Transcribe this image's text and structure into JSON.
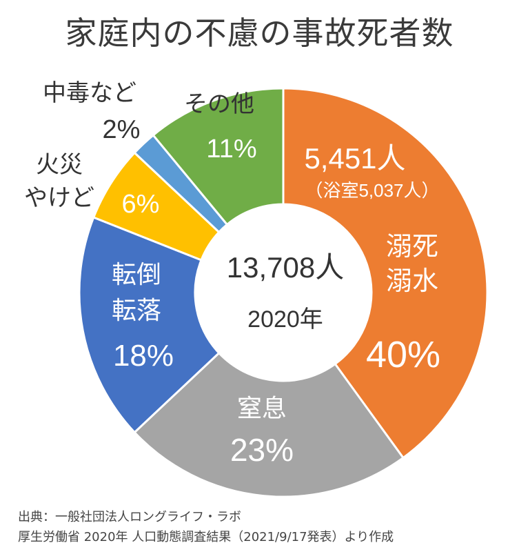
{
  "chart_data": {
    "type": "pie",
    "title": "家庭内の不慮の事故死者数",
    "center": {
      "total": "13,708人",
      "year": "2020年"
    },
    "slices": [
      {
        "name": "溺死\n溺水",
        "value": 40,
        "label": "40%",
        "color": "#ED7D31",
        "note": "5,451人",
        "subnote": "（浴室5,037人）"
      },
      {
        "name": "窒息",
        "value": 23,
        "label": "23%",
        "color": "#A5A5A5"
      },
      {
        "name": "転倒\n転落",
        "value": 18,
        "label": "18%",
        "color": "#4472C4"
      },
      {
        "name": "火災\nやけど",
        "value": 6,
        "label": "6%",
        "color": "#FFC000"
      },
      {
        "name": "中毒など",
        "value": 2,
        "label": "2%",
        "color": "#5B9BD5"
      },
      {
        "name": "その他",
        "value": 11,
        "label": "11%",
        "color": "#70AD47"
      }
    ]
  },
  "source": {
    "line1": "出典：一般社団法人ロングライフ・ラボ",
    "line2": "厚生労働省 2020年 人口動態調査結果（2021/9/17発表）より作成"
  }
}
